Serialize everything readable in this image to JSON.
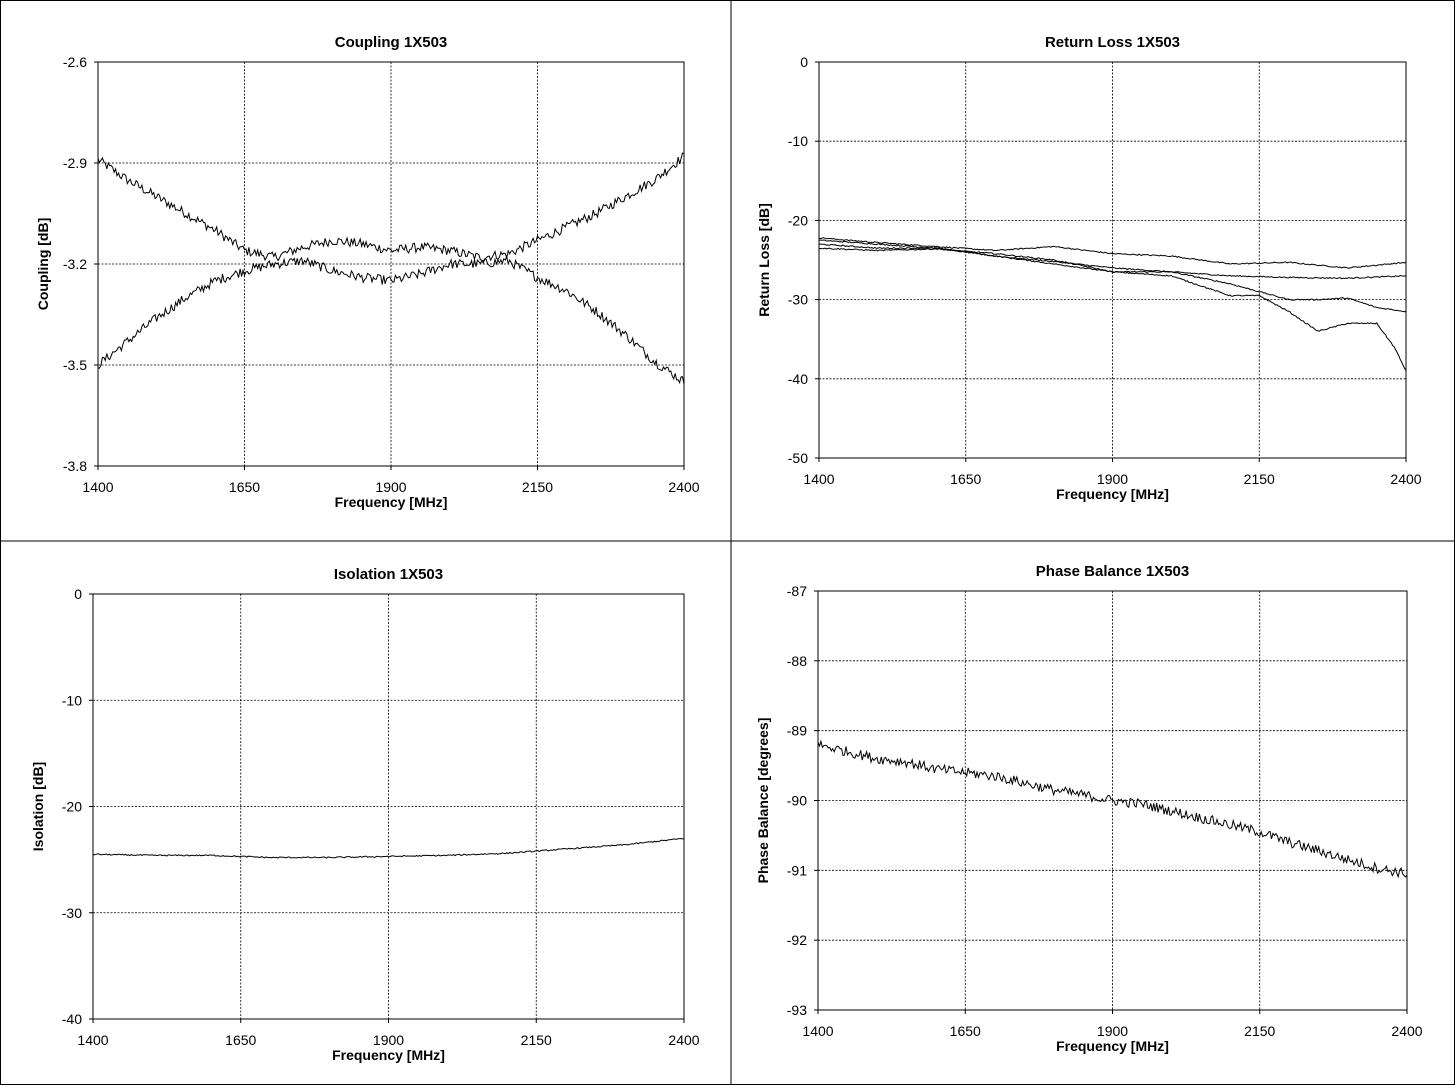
{
  "chart_data": [
    {
      "type": "line",
      "title": "Coupling 1X503",
      "xlabel": "Frequency [MHz]",
      "ylabel": "Coupling [dB]",
      "xlim": [
        1400,
        2400
      ],
      "ylim": [
        -3.8,
        -2.6
      ],
      "xticks": [
        "1400",
        "1650",
        "1900",
        "2150",
        "2400"
      ],
      "yticks": [
        "-2.6",
        "-2.9",
        "-3.2",
        "-3.5",
        "-3.8"
      ],
      "grid": true,
      "noisy": true,
      "series": [
        {
          "x": [
            1400,
            1450,
            1500,
            1550,
            1600,
            1650,
            1700,
            1750,
            1800,
            1850,
            1900,
            1950,
            2000,
            2050,
            2100,
            2150,
            2200,
            2250,
            2300,
            2350,
            2400
          ],
          "y": [
            -2.89,
            -2.95,
            -3.0,
            -3.05,
            -3.1,
            -3.16,
            -3.18,
            -3.15,
            -3.13,
            -3.14,
            -3.16,
            -3.15,
            -3.16,
            -3.18,
            -3.17,
            -3.13,
            -3.09,
            -3.05,
            -3.0,
            -2.95,
            -2.88
          ]
        },
        {
          "x": [
            1400,
            1450,
            1500,
            1550,
            1600,
            1650,
            1700,
            1750,
            1800,
            1850,
            1900,
            1950,
            2000,
            2050,
            2100,
            2150,
            2200,
            2250,
            2300,
            2350,
            2400
          ],
          "y": [
            -3.5,
            -3.43,
            -3.36,
            -3.3,
            -3.25,
            -3.22,
            -3.2,
            -3.19,
            -3.22,
            -3.24,
            -3.25,
            -3.23,
            -3.2,
            -3.2,
            -3.19,
            -3.24,
            -3.28,
            -3.34,
            -3.41,
            -3.49,
            -3.55
          ]
        }
      ]
    },
    {
      "type": "line",
      "title": "Return Loss 1X503",
      "xlabel": "Frequency [MHz]",
      "ylabel": "Return Loss [dB]",
      "xlim": [
        1400,
        2400
      ],
      "ylim": [
        -50,
        0
      ],
      "xticks": [
        "1400",
        "1650",
        "1900",
        "2150",
        "2400"
      ],
      "yticks": [
        "0",
        "-10",
        "-20",
        "-30",
        "-40",
        "-50"
      ],
      "grid": true,
      "noisy": false,
      "series": [
        {
          "x": [
            1400,
            1500,
            1600,
            1700,
            1800,
            1900,
            2000,
            2100,
            2200,
            2300,
            2400
          ],
          "y": [
            -22.2,
            -22.8,
            -23.3,
            -23.8,
            -23.3,
            -24.2,
            -24.5,
            -25.5,
            -25.3,
            -26.0,
            -25.3
          ]
        },
        {
          "x": [
            1400,
            1500,
            1600,
            1700,
            1800,
            1900,
            2000,
            2100,
            2200,
            2300,
            2400
          ],
          "y": [
            -22.5,
            -23.0,
            -23.5,
            -24.5,
            -25.2,
            -26.0,
            -26.5,
            -27.0,
            -27.2,
            -27.3,
            -27.0
          ]
        },
        {
          "x": [
            1400,
            1500,
            1600,
            1700,
            1800,
            1900,
            2000,
            2100,
            2150,
            2200,
            2250,
            2300,
            2350,
            2400
          ],
          "y": [
            -23.0,
            -23.5,
            -23.5,
            -24.5,
            -25.5,
            -26.5,
            -26.5,
            -28.0,
            -29.0,
            -30.0,
            -30.0,
            -29.8,
            -31.0,
            -31.5
          ]
        },
        {
          "x": [
            1400,
            1500,
            1600,
            1700,
            1800,
            1900,
            2000,
            2100,
            2150,
            2200,
            2250,
            2300,
            2350,
            2380,
            2400
          ],
          "y": [
            -23.5,
            -23.8,
            -23.6,
            -24.2,
            -25.0,
            -26.5,
            -27.0,
            -29.5,
            -29.5,
            -31.5,
            -34.0,
            -33.0,
            -33.0,
            -36.0,
            -39.0
          ]
        }
      ]
    },
    {
      "type": "line",
      "title": "Isolation 1X503",
      "xlabel": "Frequency [MHz]",
      "ylabel": "Isolation [dB]",
      "xlim": [
        1400,
        2400
      ],
      "ylim": [
        -40,
        0
      ],
      "xticks": [
        "1400",
        "1650",
        "1900",
        "2150",
        "2400"
      ],
      "yticks": [
        "0",
        "-10",
        "-20",
        "-30",
        "-40"
      ],
      "grid": true,
      "noisy": false,
      "series": [
        {
          "x": [
            1400,
            1500,
            1600,
            1700,
            1800,
            1900,
            2000,
            2100,
            2200,
            2300,
            2400
          ],
          "y": [
            -24.5,
            -24.6,
            -24.6,
            -24.8,
            -24.8,
            -24.7,
            -24.6,
            -24.4,
            -24.0,
            -23.6,
            -23.0
          ]
        }
      ]
    },
    {
      "type": "line",
      "title": "Phase Balance 1X503",
      "xlabel": "Frequency [MHz]",
      "ylabel": "Phase  Balance [degrees]",
      "xlim": [
        1400,
        2400
      ],
      "ylim": [
        -93,
        -87
      ],
      "xticks": [
        "1400",
        "1650",
        "1900",
        "2150",
        "2400"
      ],
      "yticks": [
        "-87",
        "-88",
        "-89",
        "-90",
        "-91",
        "-92",
        "-93"
      ],
      "grid": true,
      "noisy": true,
      "series": [
        {
          "x": [
            1400,
            1450,
            1500,
            1550,
            1600,
            1650,
            1700,
            1750,
            1800,
            1850,
            1900,
            1950,
            2000,
            2050,
            2100,
            2150,
            2200,
            2250,
            2300,
            2350,
            2400
          ],
          "y": [
            -89.2,
            -89.3,
            -89.4,
            -89.45,
            -89.55,
            -89.6,
            -89.65,
            -89.75,
            -89.85,
            -89.92,
            -90.0,
            -90.05,
            -90.15,
            -90.25,
            -90.35,
            -90.45,
            -90.6,
            -90.72,
            -90.85,
            -90.97,
            -91.05
          ]
        }
      ]
    }
  ]
}
